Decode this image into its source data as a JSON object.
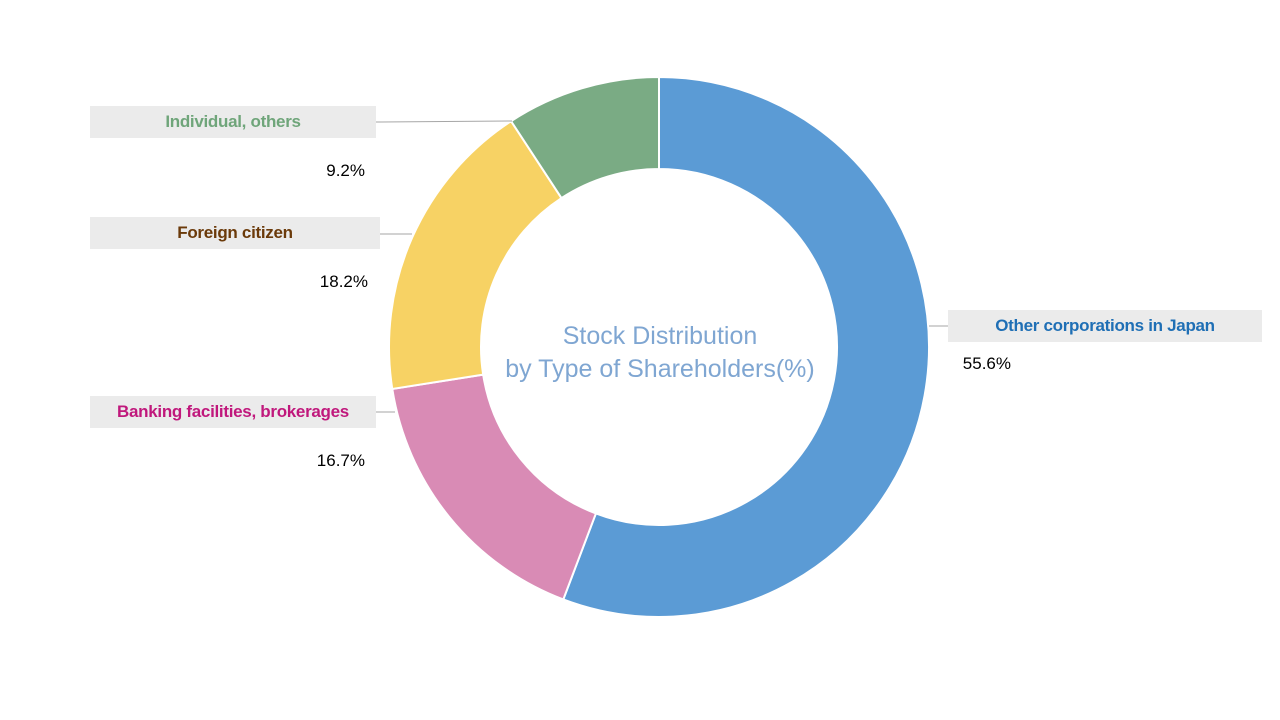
{
  "chart_data": {
    "type": "pie",
    "title_line1": "Stock Distribution",
    "title_line2": "by Type of Shareholders(%)",
    "slices": [
      {
        "label": "Other corporations in Japan",
        "value": 55.6,
        "value_text": "55.6%",
        "color": "#5b9bd5",
        "label_color": "#1f6fb5"
      },
      {
        "label": "Banking facilities, brokerages",
        "value": 16.7,
        "value_text": "16.7%",
        "color": "#d98bb5",
        "label_color": "#c0187c"
      },
      {
        "label": "Foreign citizen",
        "value": 18.2,
        "value_text": "18.2%",
        "color": "#f7d264",
        "label_color": "#6b3a0a"
      },
      {
        "label": "Individual, others",
        "value": 9.2,
        "value_text": "9.2%",
        "color": "#7aab84",
        "label_color": "#6fa57a"
      }
    ]
  }
}
